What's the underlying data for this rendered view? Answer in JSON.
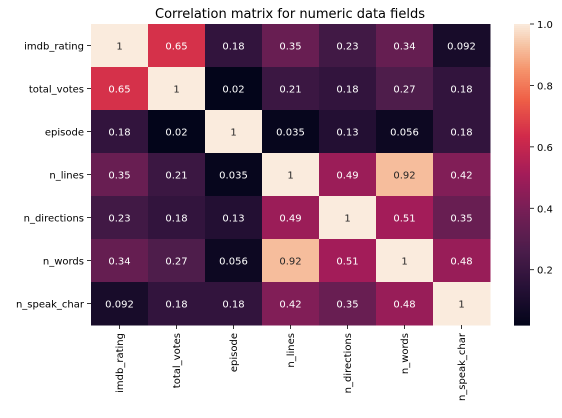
{
  "chart_data": {
    "type": "heatmap",
    "title": "Correlation matrix for numeric data fields",
    "xlabel": "",
    "ylabel": "",
    "x_labels": [
      "imdb_rating",
      "total_votes",
      "episode",
      "n_lines",
      "n_directions",
      "n_words",
      "n_speak_char"
    ],
    "y_labels": [
      "imdb_rating",
      "total_votes",
      "episode",
      "n_lines",
      "n_directions",
      "n_words",
      "n_speak_char"
    ],
    "values": [
      [
        1,
        0.65,
        0.18,
        0.35,
        0.23,
        0.34,
        0.092
      ],
      [
        0.65,
        1,
        0.02,
        0.21,
        0.18,
        0.27,
        0.18
      ],
      [
        0.18,
        0.02,
        1,
        0.035,
        0.13,
        0.056,
        0.18
      ],
      [
        0.35,
        0.21,
        0.035,
        1,
        0.49,
        0.92,
        0.42
      ],
      [
        0.23,
        0.18,
        0.13,
        0.49,
        1,
        0.51,
        0.35
      ],
      [
        0.34,
        0.27,
        0.056,
        0.92,
        0.51,
        1,
        0.48
      ],
      [
        0.092,
        0.18,
        0.18,
        0.42,
        0.35,
        0.48,
        1
      ]
    ],
    "annotations": [
      [
        "1",
        "0.65",
        "0.18",
        "0.35",
        "0.23",
        "0.34",
        "0.092"
      ],
      [
        "0.65",
        "1",
        "0.02",
        "0.21",
        "0.18",
        "0.27",
        "0.18"
      ],
      [
        "0.18",
        "0.02",
        "1",
        "0.035",
        "0.13",
        "0.056",
        "0.18"
      ],
      [
        "0.35",
        "0.21",
        "0.035",
        "1",
        "0.49",
        "0.92",
        "0.42"
      ],
      [
        "0.23",
        "0.18",
        "0.13",
        "0.49",
        "1",
        "0.51",
        "0.35"
      ],
      [
        "0.34",
        "0.27",
        "0.056",
        "0.92",
        "0.51",
        "1",
        "0.48"
      ],
      [
        "0.092",
        "0.18",
        "0.18",
        "0.42",
        "0.35",
        "0.48",
        "1"
      ]
    ],
    "color_range": [
      0.02,
      1
    ],
    "colormap": "rocket",
    "colorbar_ticks": [
      0.2,
      0.4,
      0.6,
      0.8,
      1.0
    ],
    "colorbar_tick_labels": [
      "0.2",
      "0.4",
      "0.6",
      "0.8",
      "1.0"
    ]
  }
}
